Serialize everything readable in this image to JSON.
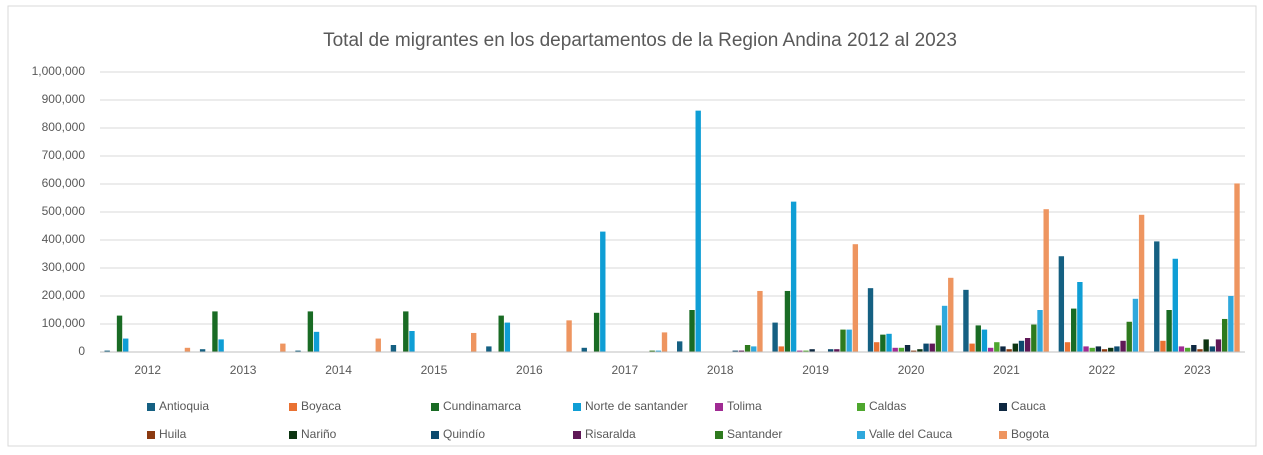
{
  "chart_data": {
    "type": "bar",
    "title": "Total de migrantes en los departamentos de la Region Andina 2012 al 2023",
    "categories": [
      "2012",
      "2013",
      "2014",
      "2015",
      "2016",
      "2017",
      "2018",
      "2019",
      "2020",
      "2021",
      "2022",
      "2023"
    ],
    "ylim": [
      0,
      1000000
    ],
    "yticks": [
      0,
      {
        "value": 100000,
        "label": "100,000"
      },
      {
        "value": 200000,
        "label": "200,000"
      },
      {
        "value": 300000,
        "label": "300,000"
      },
      {
        "value": 400000,
        "label": "400,000"
      },
      {
        "value": 500000,
        "label": "500,000"
      },
      {
        "value": 600000,
        "label": "600,000"
      },
      {
        "value": 700000,
        "label": "700,000"
      },
      {
        "value": 800000,
        "label": "800,000"
      },
      {
        "value": 900000,
        "label": "900,000"
      },
      {
        "value": 1000000,
        "label": "1,000,000"
      }
    ],
    "grid": true,
    "legend": "bottom",
    "series": [
      {
        "name": "Antioquia",
        "color": "#156082",
        "values": [
          5000,
          10000,
          5000,
          25000,
          20000,
          15000,
          38000,
          105000,
          228000,
          222000,
          342000,
          395000
        ]
      },
      {
        "name": "Boyaca",
        "color": "#E97132",
        "values": [
          null,
          null,
          null,
          null,
          null,
          null,
          null,
          20000,
          35000,
          30000,
          35000,
          40000
        ]
      },
      {
        "name": "Cundinamarca",
        "color": "#196B24",
        "values": [
          130000,
          145000,
          145000,
          145000,
          130000,
          140000,
          150000,
          218000,
          62000,
          95000,
          155000,
          150000
        ]
      },
      {
        "name": "Norte de santander",
        "color": "#0F9ED5",
        "values": [
          48000,
          45000,
          72000,
          75000,
          105000,
          430000,
          862000,
          537000,
          65000,
          80000,
          250000,
          333000
        ]
      },
      {
        "name": "Tolima",
        "color": "#A02B93",
        "values": [
          null,
          null,
          null,
          null,
          null,
          null,
          null,
          5000,
          15000,
          15000,
          20000,
          20000
        ]
      },
      {
        "name": "Caldas",
        "color": "#4EA72E",
        "values": [
          null,
          null,
          null,
          null,
          null,
          null,
          null,
          5000,
          15000,
          35000,
          15000,
          15000
        ]
      },
      {
        "name": "Cauca",
        "color": "#0E2841",
        "values": [
          null,
          null,
          null,
          null,
          null,
          null,
          null,
          10000,
          25000,
          20000,
          20000,
          25000
        ]
      },
      {
        "name": "Huila",
        "color": "#8B3A10",
        "values": [
          null,
          null,
          null,
          null,
          null,
          null,
          null,
          null,
          5000,
          10000,
          10000,
          10000
        ]
      },
      {
        "name": "Nariño",
        "color": "#0D3512",
        "values": [
          null,
          null,
          null,
          null,
          null,
          null,
          null,
          null,
          10000,
          30000,
          15000,
          45000
        ]
      },
      {
        "name": "Quindío",
        "color": "#0C4A6E",
        "values": [
          null,
          null,
          null,
          null,
          null,
          null,
          5000,
          10000,
          30000,
          40000,
          20000,
          20000
        ]
      },
      {
        "name": "Risaralda",
        "color": "#5F1857",
        "values": [
          null,
          null,
          null,
          null,
          null,
          null,
          5000,
          10000,
          30000,
          50000,
          40000,
          45000
        ]
      },
      {
        "name": "Santander",
        "color": "#2E7A1E",
        "values": [
          null,
          null,
          null,
          null,
          null,
          5000,
          25000,
          80000,
          95000,
          98000,
          108000,
          118000
        ]
      },
      {
        "name": "Valle del Cauca",
        "color": "#2FA8DC",
        "values": [
          null,
          null,
          null,
          null,
          null,
          5000,
          20000,
          80000,
          165000,
          150000,
          190000,
          200000
        ]
      },
      {
        "name": "Bogota",
        "color": "#EE9560",
        "values": [
          15000,
          30000,
          48000,
          68000,
          113000,
          70000,
          218000,
          385000,
          265000,
          510000,
          490000,
          602000
        ]
      }
    ]
  }
}
